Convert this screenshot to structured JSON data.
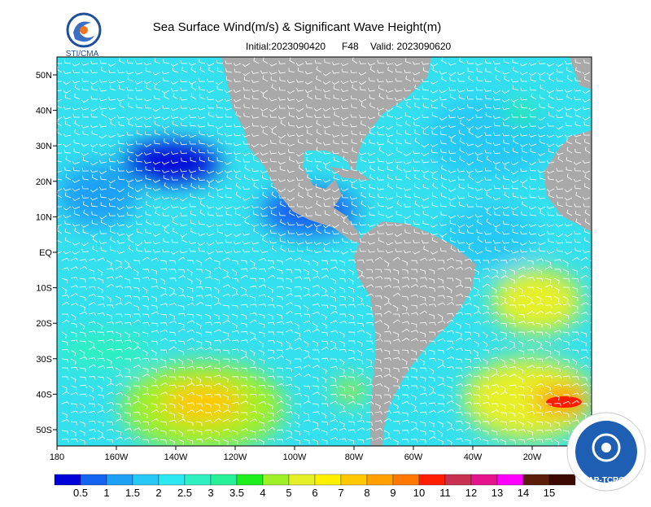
{
  "header": {
    "title": "Sea Surface Wind(m/s) & Significant Wave Height(m)",
    "initial": "Initial:2023090420",
    "forecast": "F48",
    "valid": "Valid: 2023090620",
    "logo_left": "STI/CMA",
    "logo_right": "AP-TCRC"
  },
  "map": {
    "lon_ticks": [
      {
        "value": -180,
        "label": "180"
      },
      {
        "value": -160,
        "label": "160W"
      },
      {
        "value": -140,
        "label": "140W"
      },
      {
        "value": -120,
        "label": "120W"
      },
      {
        "value": -100,
        "label": "100W"
      },
      {
        "value": -80,
        "label": "80W"
      },
      {
        "value": -60,
        "label": "60W"
      },
      {
        "value": -40,
        "label": "40W"
      },
      {
        "value": -20,
        "label": "20W"
      }
    ],
    "lat_ticks": [
      {
        "value": 50,
        "label": "50N"
      },
      {
        "value": 40,
        "label": "40N"
      },
      {
        "value": 30,
        "label": "30N"
      },
      {
        "value": 20,
        "label": "20N"
      },
      {
        "value": 10,
        "label": "10N"
      },
      {
        "value": 0,
        "label": "EQ"
      },
      {
        "value": -10,
        "label": "10S"
      },
      {
        "value": -20,
        "label": "20S"
      },
      {
        "value": -30,
        "label": "30S"
      },
      {
        "value": -40,
        "label": "40S"
      },
      {
        "value": -50,
        "label": "50S"
      }
    ]
  },
  "colorbar": {
    "levels": [
      0.5,
      1,
      1.5,
      2,
      2.5,
      3,
      3.5,
      4,
      5,
      6,
      7,
      8,
      9,
      10,
      11,
      12,
      13,
      14,
      15
    ],
    "colors": [
      "#0000d8",
      "#1464f0",
      "#1ea0f5",
      "#28c8f5",
      "#2de8f0",
      "#2ef0c0",
      "#28f096",
      "#1ef01e",
      "#a0f028",
      "#e6f028",
      "#fff000",
      "#ffc800",
      "#ffa000",
      "#ff7800",
      "#ff1e00",
      "#c83250",
      "#e6148c",
      "#ff00ff",
      "#5a1e0a",
      "#3c0a00"
    ]
  }
}
